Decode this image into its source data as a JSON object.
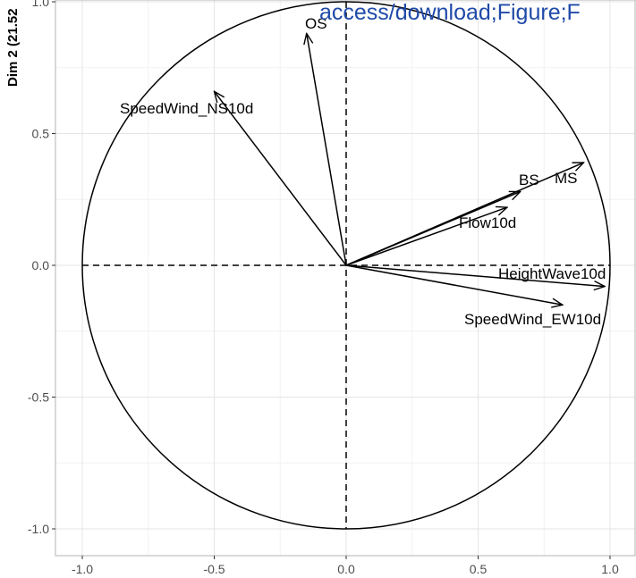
{
  "chart_data": {
    "type": "scatter",
    "subtype": "pca-correlation-circle",
    "title": "",
    "xlabel": "",
    "ylabel": "Dim 2 (21.52",
    "xlim": [
      -1.1,
      1.1
    ],
    "ylim": [
      -1.1,
      1.05
    ],
    "x_ticks": [
      -1.0,
      -0.5,
      0.0,
      0.5,
      1.0
    ],
    "y_ticks": [
      -1.0,
      -0.5,
      0.0,
      0.5,
      1.0
    ],
    "x_tick_labels": [
      "-1.0",
      "-0.5",
      "0.0",
      "0.5",
      "1.0"
    ],
    "y_tick_labels": [
      "-1.0",
      "-0.5",
      "0.0",
      "0.5",
      "1.0"
    ],
    "grid": true,
    "unit_circle": true,
    "variables": [
      {
        "name": "OS",
        "x": -0.15,
        "y": 0.88
      },
      {
        "name": "SpeedWind_NS10d",
        "x": -0.5,
        "y": 0.66
      },
      {
        "name": "MS",
        "x": 0.9,
        "y": 0.39
      },
      {
        "name": "BS",
        "x": 0.66,
        "y": 0.28
      },
      {
        "name": "Flow10d",
        "x": 0.61,
        "y": 0.22
      },
      {
        "name": "HeightWave10d",
        "x": 0.98,
        "y": -0.08
      },
      {
        "name": "SpeedWind_EW10d",
        "x": 0.82,
        "y": -0.15
      }
    ],
    "annotation": "access/download;Figure;F"
  },
  "colors": {
    "arrow": "#000000",
    "grid_major": "#e5e5e5",
    "grid_minor": "#f2f2f2",
    "panel_border": "#b3b3b3",
    "watermark": "#1f4aa8"
  }
}
